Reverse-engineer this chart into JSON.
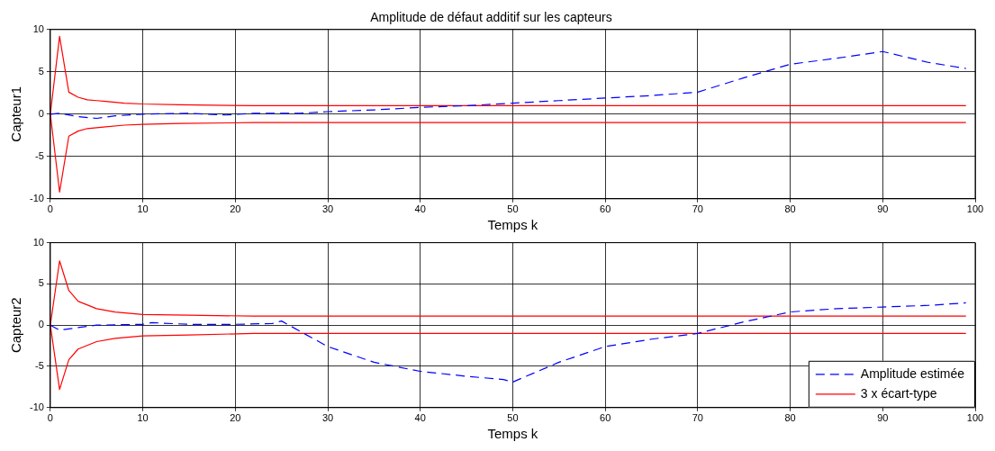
{
  "chart_data": [
    {
      "type": "line",
      "title": "Amplitude de défaut additif sur les capteurs",
      "xlabel": "Temps k",
      "ylabel": "Capteur1",
      "xlim": [
        0,
        100
      ],
      "ylim": [
        -10,
        10
      ],
      "xticks": [
        0,
        10,
        20,
        30,
        40,
        50,
        60,
        70,
        80,
        90,
        100
      ],
      "yticks": [
        -10,
        -5,
        0,
        5,
        10
      ],
      "grid": true,
      "marker": "none",
      "series": [
        {
          "color": "#0000ff",
          "line_style": "dashed",
          "x": [
            0,
            1,
            3,
            5,
            7,
            10,
            15,
            19,
            22,
            27,
            30,
            35,
            40,
            45,
            50,
            55,
            60,
            65,
            70,
            75,
            80,
            85,
            90,
            95,
            99
          ],
          "values": [
            0,
            0.1,
            -0.3,
            -0.5,
            -0.2,
            0,
            0.1,
            -0.1,
            0.1,
            0.1,
            0.3,
            0.5,
            0.8,
            1.0,
            1.3,
            1.6,
            1.9,
            2.2,
            2.6,
            4.3,
            5.9,
            6.6,
            7.4,
            6.1,
            5.4
          ]
        },
        {
          "color": "#ff0000",
          "line_style": "solid",
          "x": [
            99,
            22,
            14,
            10,
            8,
            6,
            5,
            4,
            3,
            2,
            1,
            0,
            1,
            2,
            3,
            4,
            5,
            6,
            8,
            10,
            14,
            22,
            99
          ],
          "values": [
            1.0,
            1.0,
            1.1,
            1.2,
            1.3,
            1.5,
            1.6,
            1.7,
            2.0,
            2.6,
            9.2,
            0,
            -9.2,
            -2.6,
            -2.0,
            -1.7,
            -1.6,
            -1.5,
            -1.3,
            -1.2,
            -1.1,
            -1.0,
            -1.0
          ]
        }
      ]
    },
    {
      "type": "line",
      "xlabel": "Temps k",
      "ylabel": "Capteur2",
      "xlim": [
        0,
        100
      ],
      "ylim": [
        -10,
        10
      ],
      "xticks": [
        0,
        10,
        20,
        30,
        40,
        50,
        60,
        70,
        80,
        90,
        100
      ],
      "yticks": [
        -10,
        -5,
        0,
        5,
        10
      ],
      "grid": true,
      "marker": "none",
      "legend": "bottom right",
      "series": [
        {
          "name": "Amplitude estimée",
          "color": "#0000ff",
          "line_style": "dashed",
          "x": [
            0,
            1,
            3,
            5,
            10,
            11,
            15,
            20,
            24,
            25,
            30,
            35,
            40,
            45,
            49,
            50,
            55,
            60,
            65,
            70,
            75,
            80,
            85,
            90,
            95,
            99
          ],
          "values": [
            0,
            -0.6,
            -0.3,
            0,
            0.1,
            0.3,
            0.1,
            0.1,
            0.2,
            0.5,
            -2.6,
            -4.5,
            -5.6,
            -6.2,
            -6.6,
            -6.9,
            -4.5,
            -2.6,
            -1.7,
            -1.0,
            0.4,
            1.6,
            2.0,
            2.2,
            2.4,
            2.7
          ]
        },
        {
          "name": "3 x écart-type",
          "color": "#ff0000",
          "line_style": "solid",
          "x": [
            99,
            22,
            15,
            10,
            7,
            5,
            3,
            2,
            1,
            0,
            1,
            2,
            3,
            5,
            7,
            10,
            15,
            22,
            99
          ],
          "values": [
            1.1,
            1.1,
            1.2,
            1.3,
            1.6,
            2.0,
            2.9,
            4.2,
            7.8,
            0,
            -7.8,
            -4.2,
            -2.9,
            -2.0,
            -1.6,
            -1.3,
            -1.2,
            -1.0,
            -1.0
          ]
        }
      ]
    }
  ]
}
